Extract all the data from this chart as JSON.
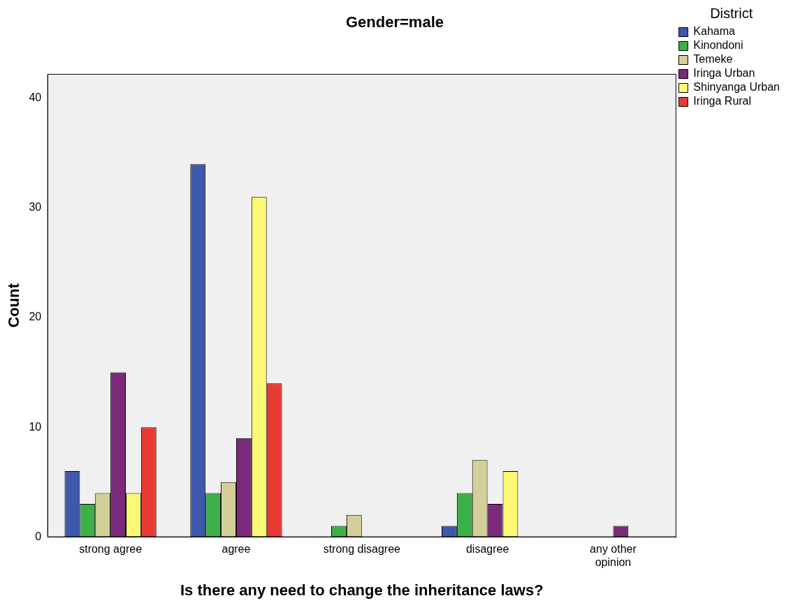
{
  "chart_data": {
    "type": "bar",
    "title": "Gender=male",
    "xlabel": "Is there any need to change the inheritance laws?",
    "ylabel": "Count",
    "legend_title": "District",
    "categories": [
      "strong agree",
      "agree",
      "strong disagree",
      "disagree",
      "any other opinion"
    ],
    "series": [
      {
        "name": "Kahama",
        "color": "#3e58ac",
        "values": [
          6,
          34,
          null,
          1,
          null
        ]
      },
      {
        "name": "Kinondoni",
        "color": "#3eb049",
        "values": [
          3,
          4,
          1,
          4,
          null
        ]
      },
      {
        "name": "Temeke",
        "color": "#d4cf98",
        "values": [
          4,
          5,
          2,
          7,
          null
        ]
      },
      {
        "name": "Iringa Urban",
        "color": "#7b2a7b",
        "values": [
          15,
          9,
          null,
          3,
          1
        ]
      },
      {
        "name": "Shinyanga Urban",
        "color": "#fbf873",
        "values": [
          4,
          31,
          null,
          6,
          null
        ]
      },
      {
        "name": "Iringa Rural",
        "color": "#e93a36",
        "values": [
          10,
          14,
          null,
          null,
          null
        ]
      }
    ],
    "ylim": [
      0,
      42.2
    ],
    "yticks": [
      0,
      10,
      20,
      30,
      40
    ],
    "grid": false,
    "legend": "right"
  }
}
